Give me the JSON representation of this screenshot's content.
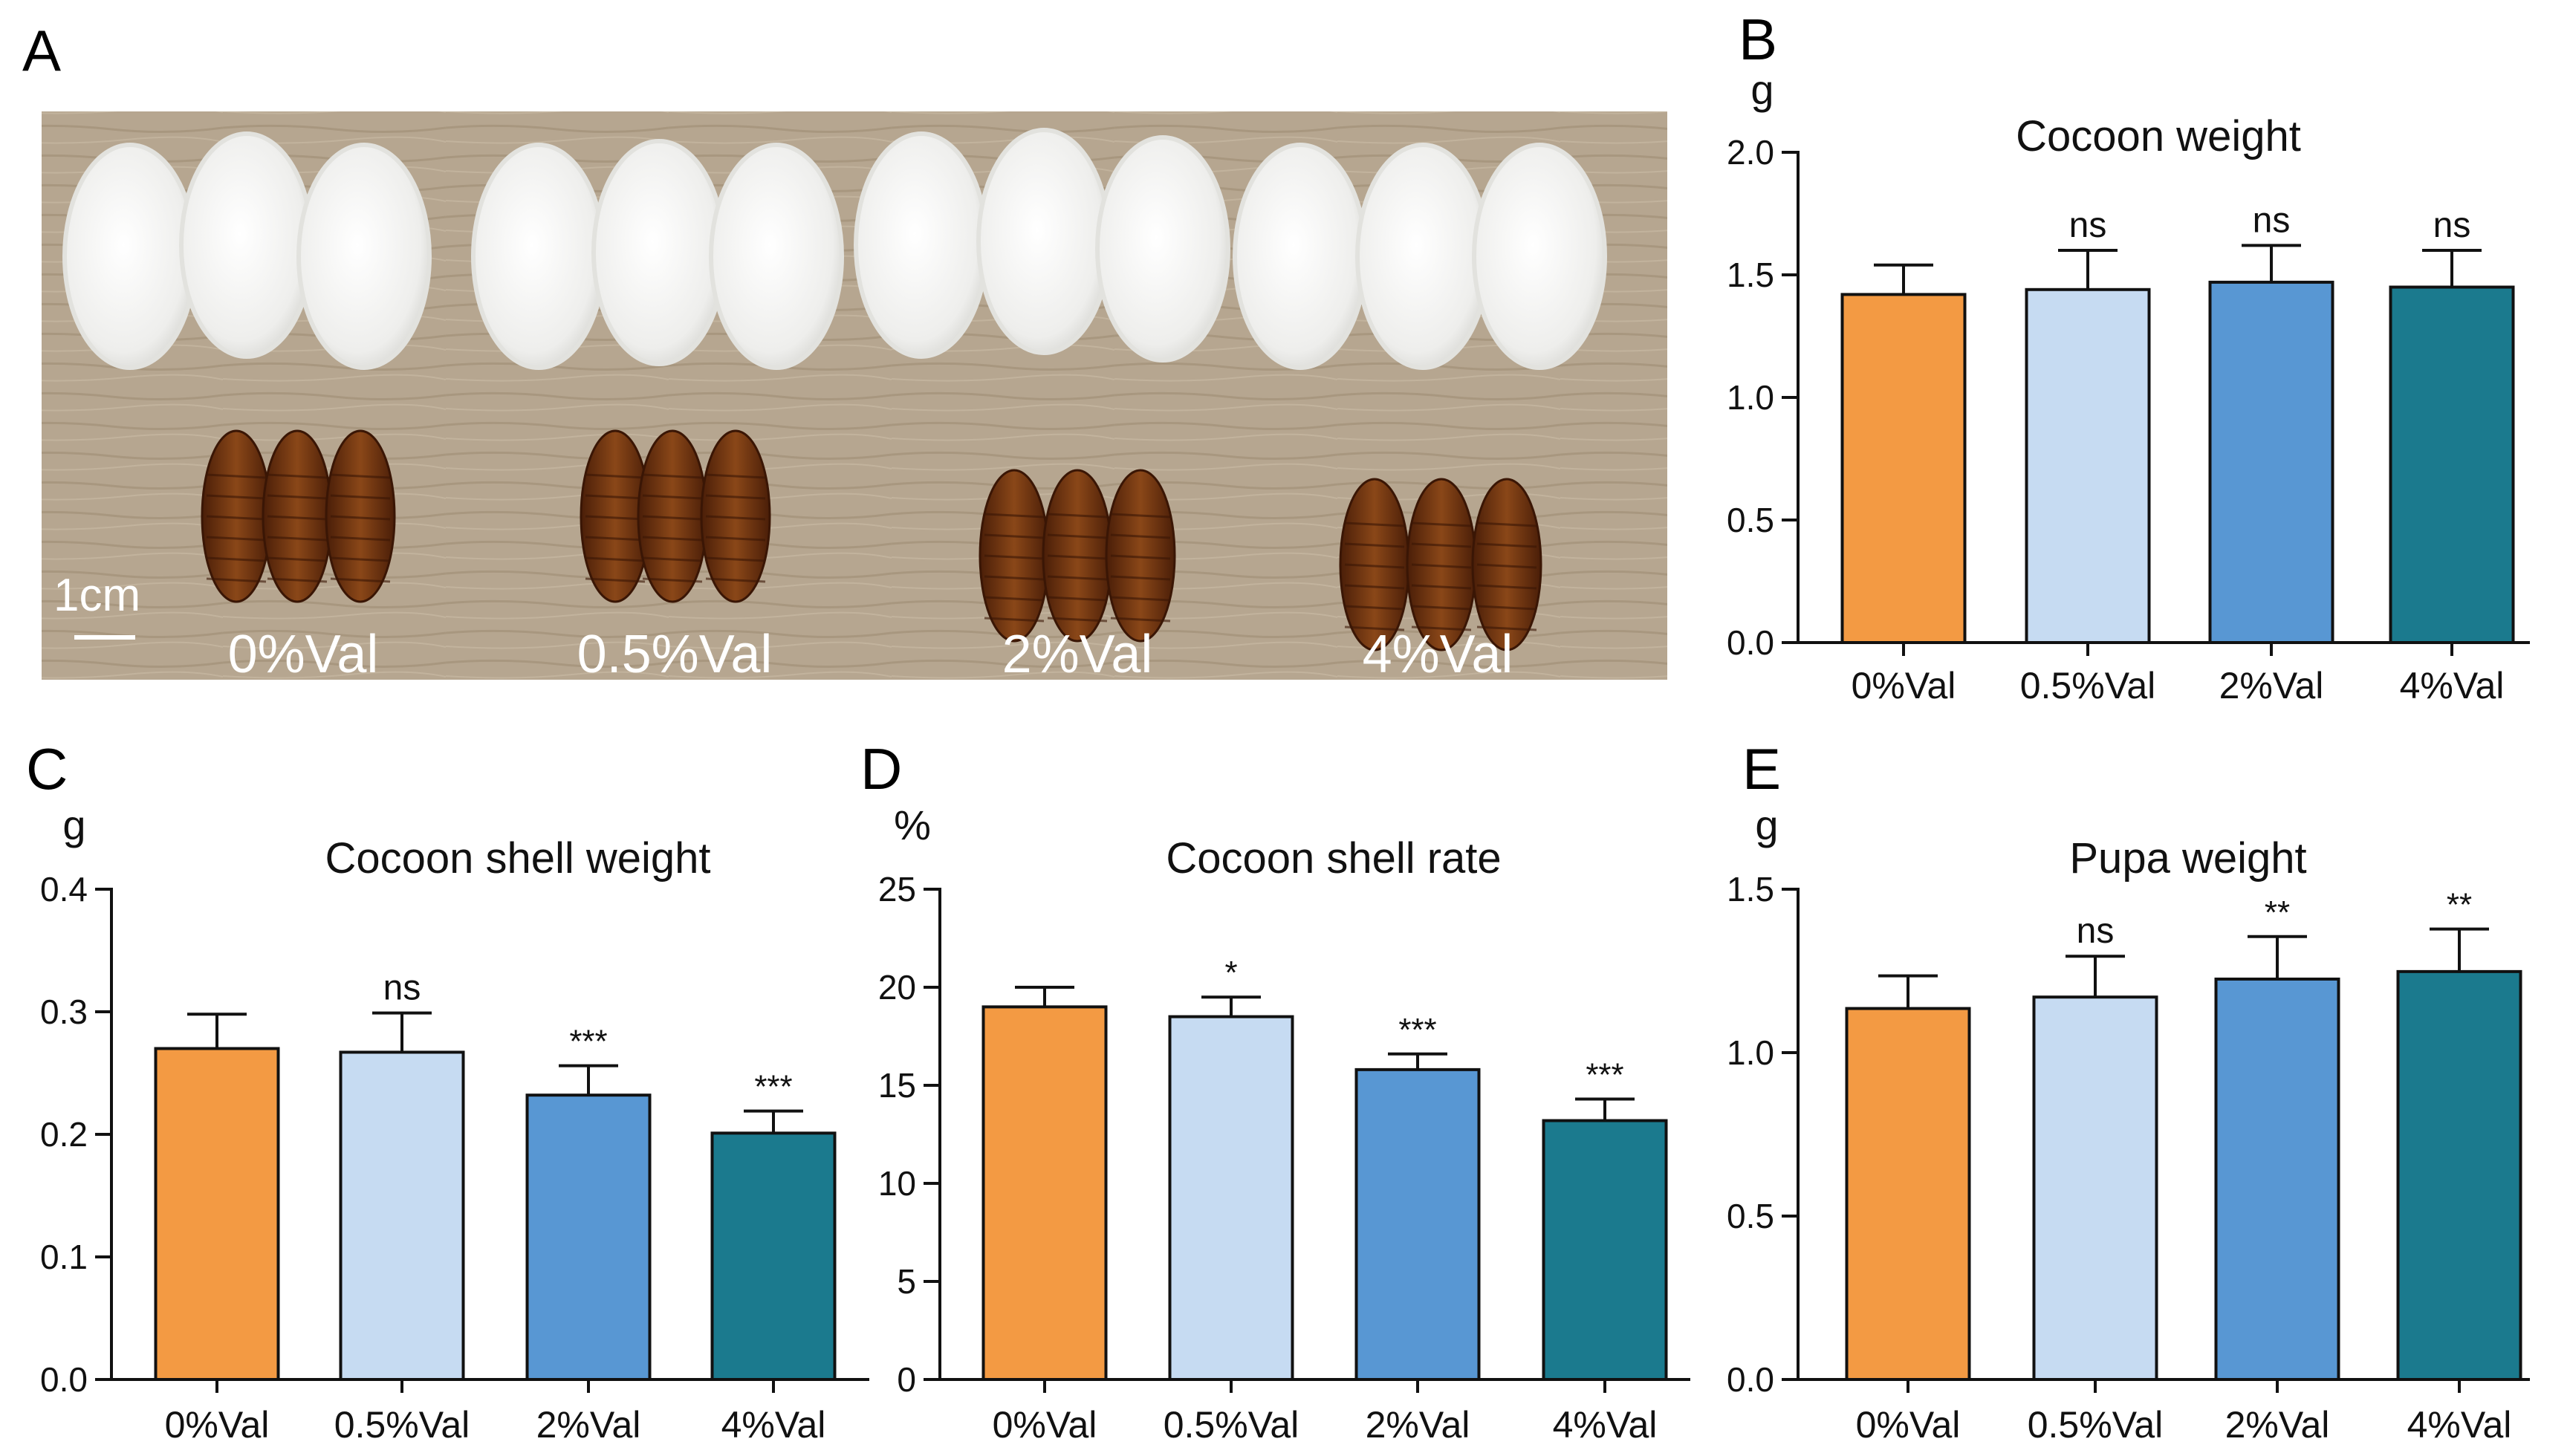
{
  "panel_letters": {
    "a": "A",
    "b": "B",
    "c": "C",
    "d": "D",
    "e": "E"
  },
  "photo": {
    "scale_bar_label": "1cm",
    "group_labels": [
      "0%Val",
      "0.5%Val",
      "2%Val",
      "4%Val"
    ],
    "colors": {
      "board": "#b4a48f",
      "cocoon": "#f4f4f2",
      "pupa": "#6e3210"
    }
  },
  "colors": {
    "bars": [
      "#f39a43",
      "#c6dbf2",
      "#5897d3",
      "#1b7a8e"
    ],
    "axis": "#111111",
    "outline": "#111111"
  },
  "chart_data": [
    {
      "id": "B",
      "type": "bar",
      "title": "Cocoon weight",
      "ylabel": "g",
      "xlabel": "",
      "categories": [
        "0%Val",
        "0.5%Val",
        "2%Val",
        "4%Val"
      ],
      "values": [
        1.42,
        1.44,
        1.47,
        1.45
      ],
      "errors": [
        0.12,
        0.16,
        0.15,
        0.15
      ],
      "significance": [
        "",
        "ns",
        "ns",
        "ns"
      ],
      "ylim": [
        0,
        2.0
      ],
      "yticks": [
        0.0,
        0.5,
        1.0,
        1.5,
        2.0
      ],
      "ytick_labels": [
        "0.0",
        "0.5",
        "1.0",
        "1.5",
        "2.0"
      ]
    },
    {
      "id": "C",
      "type": "bar",
      "title": "Cocoon shell weight",
      "ylabel": "g",
      "xlabel": "",
      "categories": [
        "0%Val",
        "0.5%Val",
        "2%Val",
        "4%Val"
      ],
      "values": [
        0.27,
        0.267,
        0.232,
        0.201
      ],
      "errors": [
        0.028,
        0.032,
        0.024,
        0.018
      ],
      "significance": [
        "",
        "ns",
        "***",
        "***"
      ],
      "ylim": [
        0,
        0.4
      ],
      "yticks": [
        0.0,
        0.1,
        0.2,
        0.3,
        0.4
      ],
      "ytick_labels": [
        "0.0",
        "0.1",
        "0.2",
        "0.3",
        "0.4"
      ]
    },
    {
      "id": "D",
      "type": "bar",
      "title": "Cocoon shell rate",
      "ylabel": "%",
      "xlabel": "",
      "categories": [
        "0%Val",
        "0.5%Val",
        "2%Val",
        "4%Val"
      ],
      "values": [
        19.0,
        18.5,
        15.8,
        13.2
      ],
      "errors": [
        1.0,
        1.0,
        0.8,
        1.1
      ],
      "significance": [
        "",
        "*",
        "***",
        "***"
      ],
      "ylim": [
        0,
        25
      ],
      "yticks": [
        0,
        5,
        10,
        15,
        20,
        25
      ],
      "ytick_labels": [
        "0",
        "5",
        "10",
        "15",
        "20",
        "25"
      ]
    },
    {
      "id": "E",
      "type": "bar",
      "title": "Pupa weight",
      "ylabel": "g",
      "xlabel": "",
      "categories": [
        "0%Val",
        "0.5%Val",
        "2%Val",
        "4%Val"
      ],
      "values": [
        1.135,
        1.17,
        1.225,
        1.248
      ],
      "errors": [
        0.1,
        0.125,
        0.13,
        0.13
      ],
      "significance": [
        "",
        "ns",
        "**",
        "**"
      ],
      "ylim": [
        0,
        1.5
      ],
      "yticks": [
        0.0,
        0.5,
        1.0,
        1.5
      ],
      "ytick_labels": [
        "0.0",
        "0.5",
        "1.0",
        "1.5"
      ]
    }
  ]
}
